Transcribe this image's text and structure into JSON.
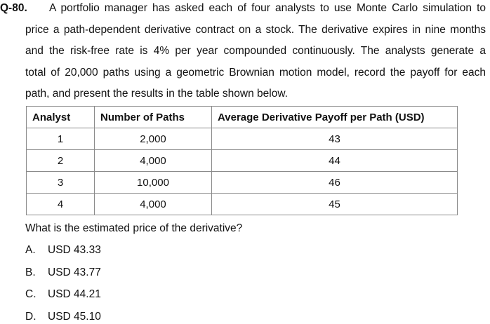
{
  "question": {
    "number": "Q-80.",
    "lines": [
      "A portfolio manager has asked each of four analysts to use Monte Carlo simulation to",
      "price a path-dependent derivative contract on a stock. The derivative expires in nine months",
      "and the risk-free rate is 4% per year compounded continuously. The analysts generate a",
      "total of 20,000 paths using a geometric Brownian motion model, record the payoff for each",
      "path, and present the results in the table shown below."
    ],
    "prompt": "What is the estimated price of the derivative?"
  },
  "table": {
    "headers": [
      "Analyst",
      "Number of Paths",
      "Average Derivative Payoff per Path (USD)"
    ],
    "rows": [
      [
        "1",
        "2,000",
        "43"
      ],
      [
        "2",
        "4,000",
        "44"
      ],
      [
        "3",
        "10,000",
        "46"
      ],
      [
        "4",
        "4,000",
        "45"
      ]
    ]
  },
  "options": [
    {
      "letter": "A.",
      "text": "USD 43.33"
    },
    {
      "letter": "B.",
      "text": "USD 43.77"
    },
    {
      "letter": "C.",
      "text": "USD 44.21"
    },
    {
      "letter": "D.",
      "text": "USD 45.10"
    }
  ]
}
